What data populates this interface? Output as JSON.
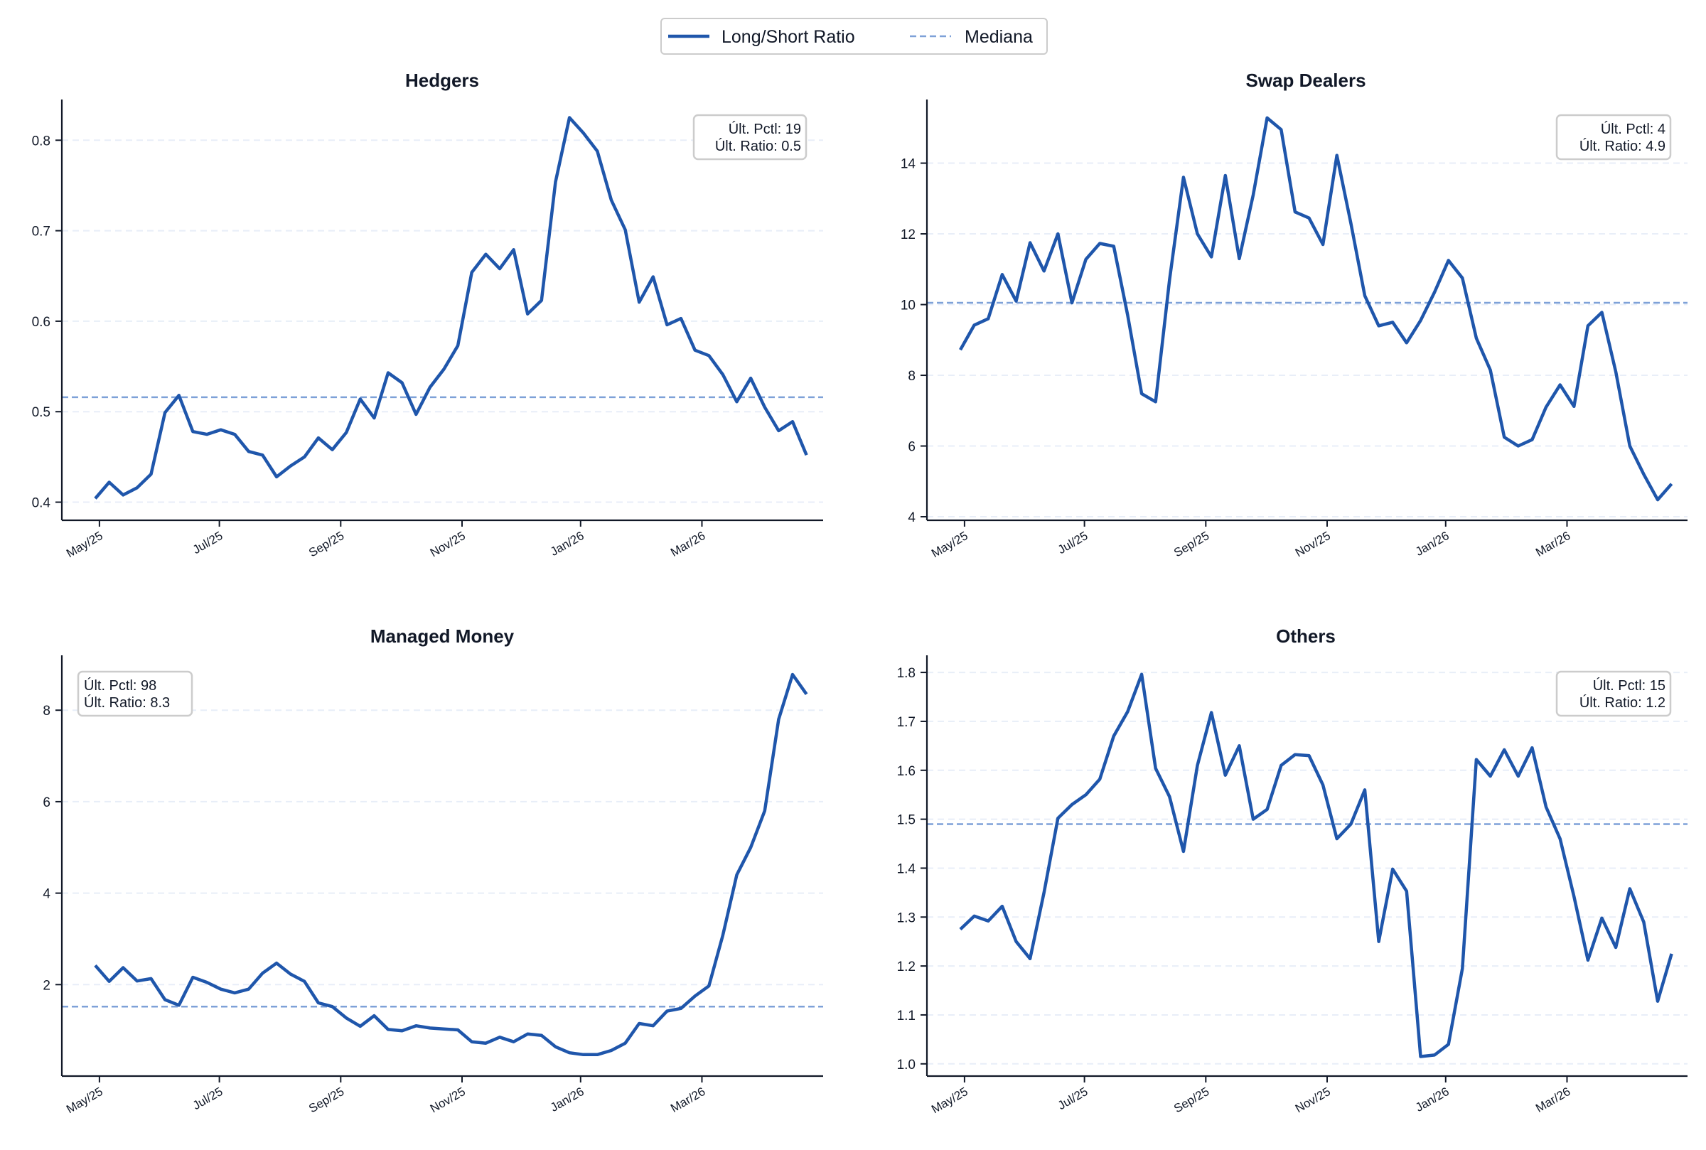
{
  "legend": {
    "series_label": "Long/Short Ratio",
    "median_label": "Mediana"
  },
  "colors": {
    "line": "#1f56ab",
    "median": "#7ea1d8",
    "grid": "#e8eef8",
    "axis": "#111827",
    "annot_border": "#cccccc"
  },
  "chart_data": [
    {
      "type": "line",
      "title": "Hedgers",
      "xlabel": "",
      "ylabel": "",
      "x_ticks": [
        "May/25",
        "Jul/25",
        "Sep/25",
        "Nov/25",
        "Jan/26",
        "Mar/26"
      ],
      "ylim": [
        0.38,
        0.845
      ],
      "y_ticks": [
        0.4,
        0.5,
        0.6,
        0.7,
        0.8
      ],
      "y_tick_labels": [
        "0.4",
        "0.5",
        "0.6",
        "0.7",
        "0.8"
      ],
      "median": 0.516,
      "annotation": {
        "percentile": "Últ. Pctl: 19",
        "ratio": "Últ. Ratio: 0.5",
        "position": "top-right"
      },
      "grid": "horizontal-dashed",
      "legend": "top-center",
      "values": [
        0.404,
        0.422,
        0.408,
        0.416,
        0.431,
        0.499,
        0.518,
        0.478,
        0.475,
        0.48,
        0.475,
        0.456,
        0.452,
        0.428,
        0.44,
        0.45,
        0.471,
        0.458,
        0.477,
        0.514,
        0.493,
        0.543,
        0.532,
        0.497,
        0.527,
        0.547,
        0.573,
        0.654,
        0.674,
        0.658,
        0.679,
        0.608,
        0.623,
        0.754,
        0.825,
        0.808,
        0.788,
        0.734,
        0.701,
        0.621,
        0.649,
        0.596,
        0.603,
        0.568,
        0.562,
        0.541,
        0.511,
        0.537,
        0.505,
        0.479,
        0.489,
        0.452
      ]
    },
    {
      "type": "line",
      "title": "Swap Dealers",
      "xlabel": "",
      "ylabel": "",
      "x_ticks": [
        "May/25",
        "Jul/25",
        "Sep/25",
        "Nov/25",
        "Jan/26",
        "Mar/26"
      ],
      "ylim": [
        3.9,
        15.8
      ],
      "y_ticks": [
        4,
        6,
        8,
        10,
        12,
        14
      ],
      "y_tick_labels": [
        "4",
        "6",
        "8",
        "10",
        "12",
        "14"
      ],
      "median": 10.05,
      "annotation": {
        "percentile": "Últ. Pctl: 4",
        "ratio": "Últ. Ratio: 4.9",
        "position": "top-right"
      },
      "grid": "horizontal-dashed",
      "legend": "top-center",
      "values": [
        8.72,
        9.42,
        9.6,
        10.85,
        10.1,
        11.75,
        10.95,
        12.0,
        10.05,
        11.28,
        11.73,
        11.65,
        9.7,
        7.48,
        7.25,
        10.7,
        13.6,
        12.0,
        11.35,
        13.65,
        11.3,
        13.1,
        15.28,
        14.95,
        12.62,
        12.45,
        11.7,
        14.22,
        12.3,
        10.25,
        9.4,
        9.5,
        8.92,
        9.55,
        10.35,
        11.25,
        10.75,
        9.05,
        8.15,
        6.25,
        6.0,
        6.18,
        7.1,
        7.73,
        7.12,
        9.4,
        9.78,
        8.1,
        6.0,
        5.2,
        4.48,
        4.93
      ]
    },
    {
      "type": "line",
      "title": "Managed Money",
      "xlabel": "",
      "ylabel": "",
      "x_ticks": [
        "May/25",
        "Jul/25",
        "Sep/25",
        "Nov/25",
        "Jan/26",
        "Mar/26"
      ],
      "ylim": [
        0.0,
        9.2
      ],
      "y_ticks": [
        2,
        4,
        6,
        8
      ],
      "y_tick_labels": [
        "2",
        "4",
        "6",
        "8"
      ],
      "median": 1.52,
      "annotation": {
        "percentile": "Últ. Pctl: 98",
        "ratio": "Últ. Ratio: 8.3",
        "position": "top-left"
      },
      "grid": "horizontal-dashed",
      "legend": "top-center",
      "values": [
        2.42,
        2.07,
        2.37,
        2.08,
        2.13,
        1.67,
        1.55,
        2.16,
        2.05,
        1.9,
        1.82,
        1.9,
        2.25,
        2.47,
        2.23,
        2.07,
        1.6,
        1.52,
        1.27,
        1.09,
        1.32,
        1.02,
        0.99,
        1.1,
        1.05,
        1.03,
        1.01,
        0.75,
        0.72,
        0.85,
        0.75,
        0.92,
        0.89,
        0.64,
        0.51,
        0.47,
        0.47,
        0.56,
        0.72,
        1.15,
        1.1,
        1.42,
        1.48,
        1.75,
        1.97,
        3.08,
        4.4,
        5.0,
        5.8,
        7.8,
        8.78,
        8.35
      ]
    },
    {
      "type": "line",
      "title": "Others",
      "xlabel": "",
      "ylabel": "",
      "x_ticks": [
        "May/25",
        "Jul/25",
        "Sep/25",
        "Nov/25",
        "Jan/26",
        "Mar/26"
      ],
      "ylim": [
        0.975,
        1.835
      ],
      "y_ticks": [
        1.0,
        1.1,
        1.2,
        1.3,
        1.4,
        1.5,
        1.6,
        1.7,
        1.8
      ],
      "y_tick_labels": [
        "1.0",
        "1.1",
        "1.2",
        "1.3",
        "1.4",
        "1.5",
        "1.6",
        "1.7",
        "1.8"
      ],
      "median": 1.49,
      "annotation": {
        "percentile": "Últ. Pctl: 15",
        "ratio": "Últ. Ratio: 1.2",
        "position": "top-right"
      },
      "grid": "horizontal-dashed",
      "legend": "top-center",
      "values": [
        1.275,
        1.302,
        1.292,
        1.322,
        1.25,
        1.215,
        1.35,
        1.502,
        1.53,
        1.55,
        1.582,
        1.67,
        1.72,
        1.796,
        1.604,
        1.546,
        1.434,
        1.61,
        1.718,
        1.59,
        1.65,
        1.5,
        1.52,
        1.61,
        1.632,
        1.63,
        1.57,
        1.46,
        1.49,
        1.56,
        1.25,
        1.398,
        1.353,
        1.015,
        1.018,
        1.04,
        1.195,
        1.622,
        1.588,
        1.642,
        1.588,
        1.646,
        1.525,
        1.46,
        1.342,
        1.212,
        1.298,
        1.238,
        1.358,
        1.29,
        1.128,
        1.225
      ]
    }
  ]
}
